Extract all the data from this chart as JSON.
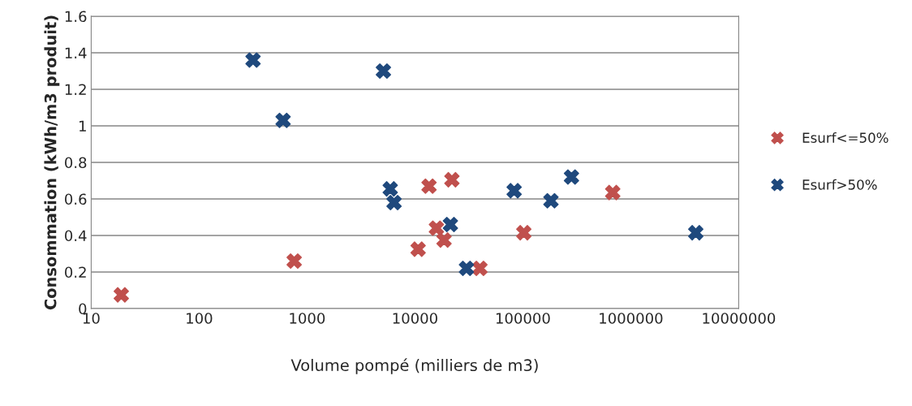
{
  "chart_data": {
    "type": "scatter",
    "xlabel": "Volume pompé (milliers de m3)",
    "ylabel": "Consommation (kWh/m3 produit)",
    "log": "x",
    "grid": "y",
    "legend": "right",
    "marker": "cross",
    "xlim": [
      10,
      10000000
    ],
    "xticks": [
      10,
      100,
      1000,
      10000,
      100000,
      1000000,
      10000000
    ],
    "ylim": [
      0,
      1.6
    ],
    "yticks": [
      0,
      {
        "value": 0.2,
        "label": "0.2"
      },
      {
        "value": 0.4,
        "label": "0.4"
      },
      {
        "value": 0.6,
        "label": "0.6"
      },
      {
        "value": 0.8,
        "label": "0.8"
      },
      1,
      {
        "value": 1.2,
        "label": "1.2"
      },
      {
        "value": 1.4,
        "label": "1.4"
      },
      {
        "value": 1.6,
        "label": "1.6"
      }
    ],
    "series": [
      {
        "name": "Esurf<=50%",
        "color": "#c0504d",
        "x": [
          19,
          760,
          10700,
          13500,
          15800,
          18600,
          22000,
          40000,
          102000,
          680000
        ],
        "values": [
          0.075,
          0.26,
          0.325,
          0.67,
          0.44,
          0.375,
          0.705,
          0.22,
          0.415,
          0.635
        ]
      },
      {
        "name": "Esurf>50%",
        "color": "#1f497d",
        "x": [
          316,
          5100,
          600,
          5900,
          6400,
          21300,
          30000,
          83000,
          182000,
          282000,
          4000000
        ],
        "values": [
          1.36,
          1.3,
          1.03,
          0.655,
          0.58,
          0.46,
          0.22,
          0.645,
          0.59,
          0.72,
          0.415
        ]
      }
    ]
  }
}
